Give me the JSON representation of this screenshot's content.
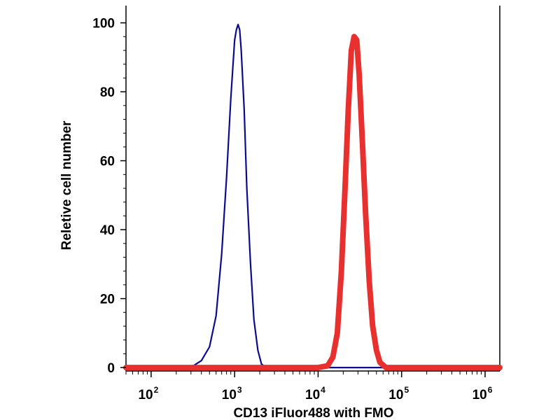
{
  "chart_data": {
    "type": "line",
    "title": "",
    "xlabel": "CD13 iFluor488 with FMO",
    "ylabel": "Reletive cell number",
    "x_scale": "log",
    "xlim": [
      50,
      1500000
    ],
    "ylim": [
      -1,
      105
    ],
    "x_ticks": [
      {
        "value": 100,
        "base": "10",
        "exp": "2"
      },
      {
        "value": 1000,
        "base": "10",
        "exp": "3"
      },
      {
        "value": 10000,
        "base": "10",
        "exp": "4"
      },
      {
        "value": 100000,
        "base": "10",
        "exp": "5"
      },
      {
        "value": 1000000,
        "base": "10",
        "exp": "6"
      }
    ],
    "y_ticks": [
      0,
      20,
      40,
      60,
      80,
      100
    ],
    "grid": false,
    "legend": "none",
    "series": [
      {
        "color": "#0b0b8f",
        "stroke": "thin",
        "x": [
          50,
          250,
          320,
          400,
          500,
          600,
          700,
          800,
          900,
          1000,
          1050,
          1100,
          1150,
          1200,
          1300,
          1400,
          1550,
          1700,
          1900,
          2100,
          2400,
          3000,
          10000,
          100000,
          1500000
        ],
        "y": [
          0,
          0,
          0.5,
          2,
          6,
          15,
          33,
          55,
          78,
          95,
          98,
          99.5,
          98,
          92,
          75,
          52,
          30,
          14,
          5,
          1,
          0,
          0,
          0,
          0,
          0
        ]
      },
      {
        "color": "#e8312f",
        "stroke": "thick",
        "x": [
          50,
          1000,
          10000,
          13000,
          15000,
          17000,
          19000,
          21000,
          23000,
          25000,
          27000,
          29000,
          31000,
          34000,
          37000,
          41000,
          45000,
          50000,
          55000,
          65000,
          100000,
          1500000
        ],
        "y": [
          0,
          0,
          0,
          0.5,
          3,
          10,
          28,
          52,
          75,
          92,
          96,
          95,
          85,
          65,
          45,
          25,
          12,
          5,
          1.5,
          0,
          0,
          0
        ]
      }
    ]
  }
}
